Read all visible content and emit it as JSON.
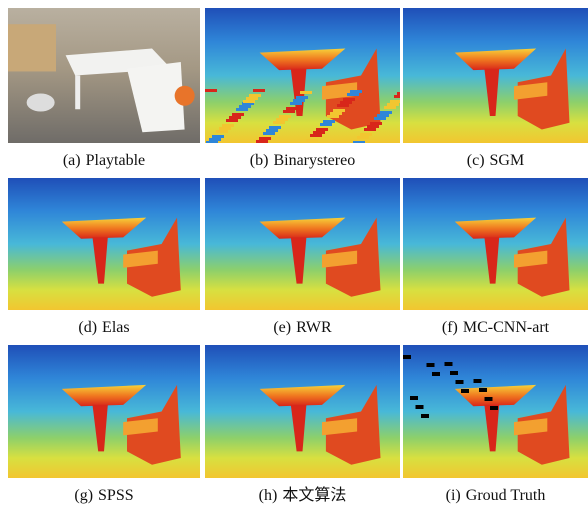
{
  "figure": {
    "panels": [
      {
        "tag": "(a)",
        "name": "Playtable"
      },
      {
        "tag": "(b)",
        "name": "Binarystereo"
      },
      {
        "tag": "(c)",
        "name": "SGM"
      },
      {
        "tag": "(d)",
        "name": "Elas"
      },
      {
        "tag": "(e)",
        "name": "RWR"
      },
      {
        "tag": "(f)",
        "name": "MC-CNN-art"
      },
      {
        "tag": "(g)",
        "name": "SPSS"
      },
      {
        "tag": "(h)",
        "name": "本文算法"
      },
      {
        "tag": "(i)",
        "name": "Groud Truth"
      }
    ]
  }
}
